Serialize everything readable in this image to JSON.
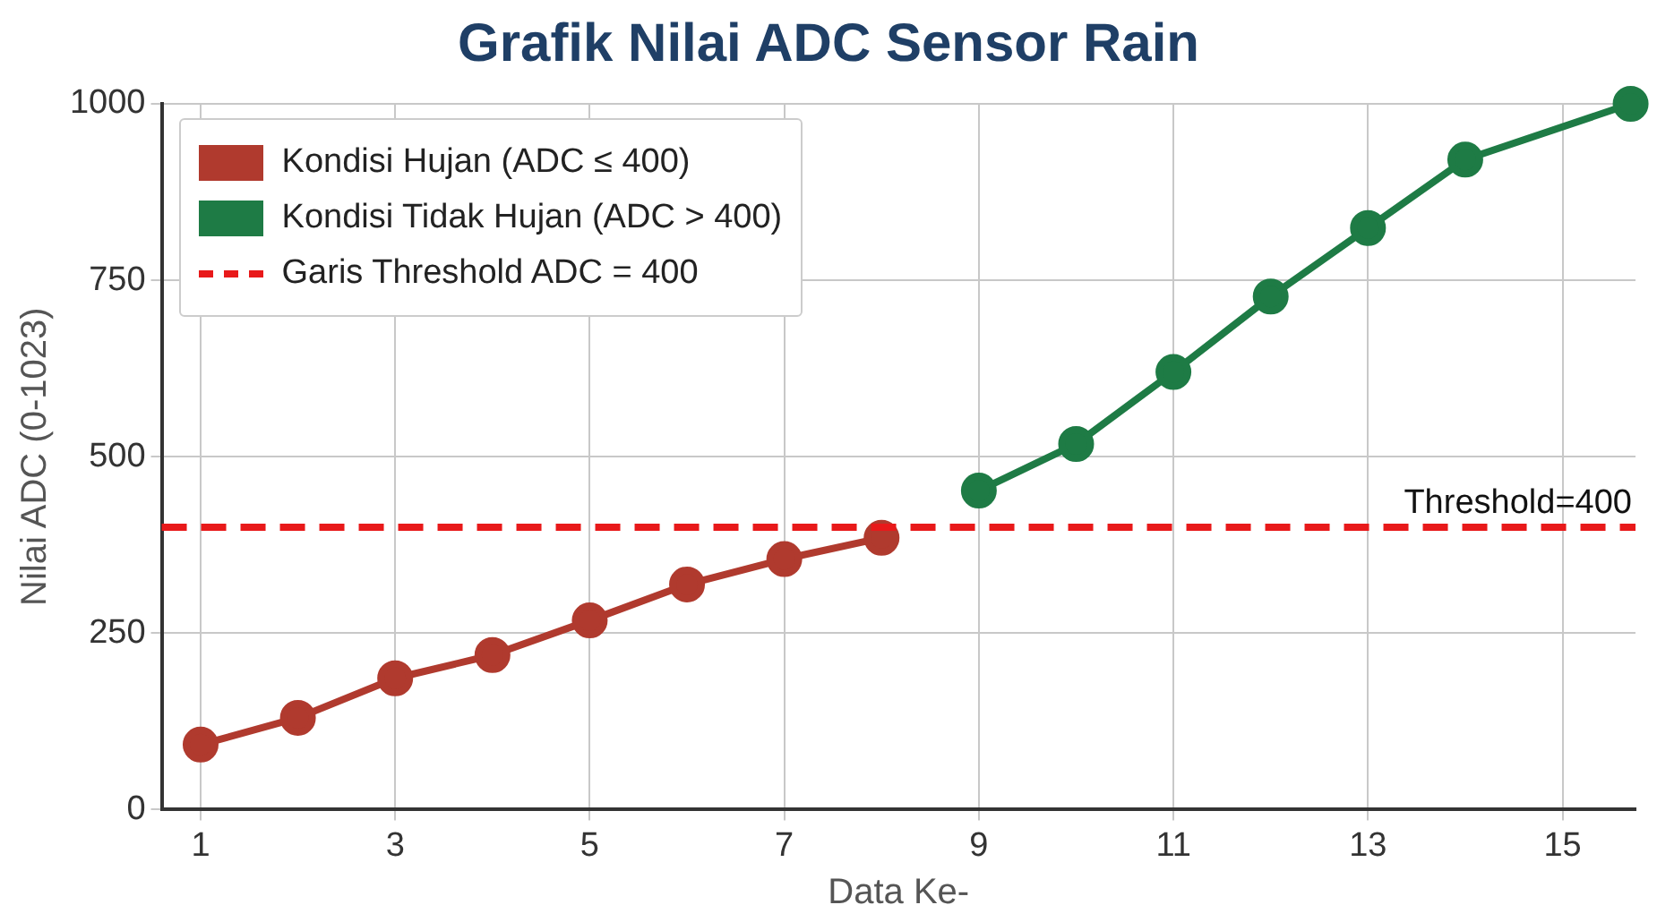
{
  "chart_data": {
    "type": "line",
    "title": "Grafik Nilai ADC Sensor Rain",
    "xlabel": "Data Ke-",
    "ylabel": "Nilai ADC (0-1023)",
    "xlim": [
      0.6,
      15.75
    ],
    "xticks": [
      1,
      3,
      5,
      7,
      9,
      11,
      13,
      15
    ],
    "ylim": [
      0,
      1000
    ],
    "yticks": [
      0,
      250,
      500,
      750,
      1000
    ],
    "series": [
      {
        "name": "Kondisi Hujan (ADC ≤ 400)",
        "color": "#b03a2e",
        "x": [
          1,
          2,
          3,
          4,
          5,
          6,
          7,
          8
        ],
        "values": [
          92,
          130,
          186,
          219,
          268,
          319,
          355,
          385
        ]
      },
      {
        "name": "Kondisi Tidak Hujan (ADC > 400)",
        "color": "#1e7b45",
        "x": [
          9,
          10,
          11,
          12,
          13,
          14,
          15.7
        ],
        "values": [
          452,
          518,
          620,
          727,
          824,
          921,
          1000
        ]
      }
    ],
    "ref_lines": [
      {
        "axis": "y",
        "value": 400,
        "label": "Threshold=400",
        "color": "#e8191a",
        "line_style": "dashed"
      }
    ],
    "annotations": [
      "Garis Threshold ADC = 400"
    ],
    "grid": true,
    "legend": "top left",
    "marker": "circle",
    "line_style": "solid"
  }
}
